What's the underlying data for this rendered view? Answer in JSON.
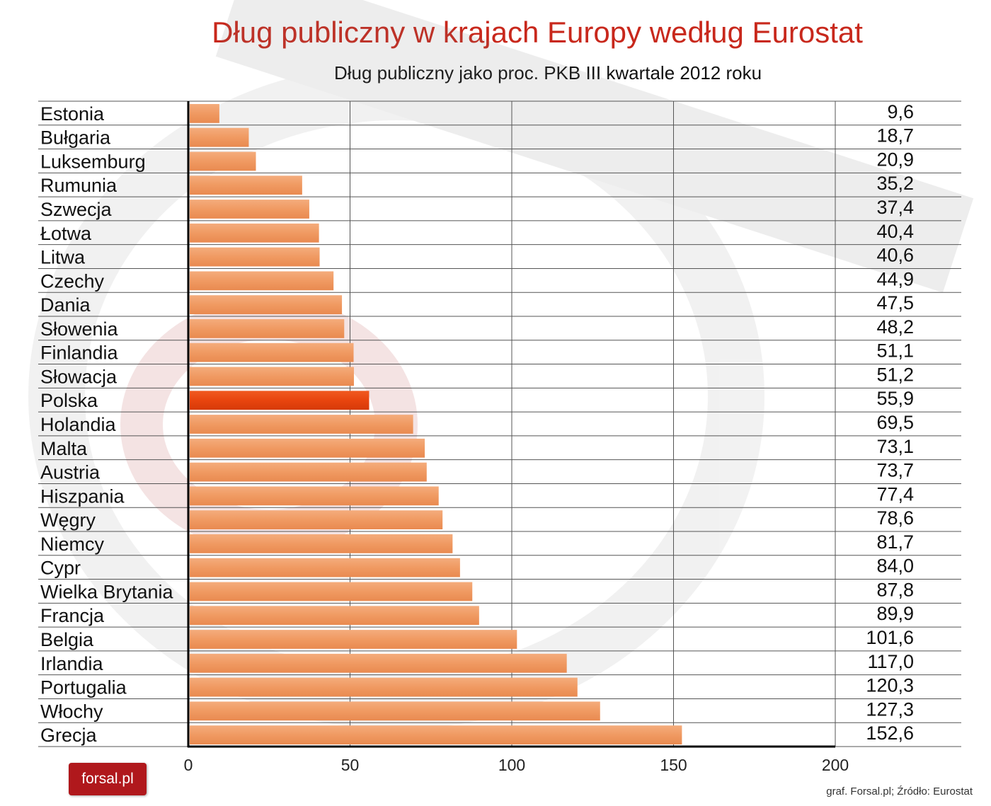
{
  "header": {
    "title": "Dług publiczny w krajach Europy według Eurostat",
    "subtitle": "Dług publiczny jako proc. PKB III kwartale 2012 roku"
  },
  "footer": {
    "logo": "forsal.pl",
    "source": "graf. Forsal.pl; Źródło: Eurostat"
  },
  "colors": {
    "bar": "#f2a06c",
    "bar_highlight": "#e8450f",
    "title": "#c8281c",
    "logo_bg": "#b0181c"
  },
  "chart_data": {
    "type": "bar",
    "orientation": "horizontal",
    "title": "Dług publiczny w krajach Europy według Eurostat",
    "subtitle": "Dług publiczny jako proc. PKB III kwartale 2012 roku",
    "categories": [
      "Estonia",
      "Bułgaria",
      "Luksemburg",
      "Rumunia",
      "Szwecja",
      "Łotwa",
      "Litwa",
      "Czechy",
      "Dania",
      "Słowenia",
      "Finlandia",
      "Słowacja",
      "Polska",
      "Holandia",
      "Malta",
      "Austria",
      "Hiszpania",
      "Węgry",
      "Niemcy",
      "Cypr",
      "Wielka Brytania",
      "Francja",
      "Belgia",
      "Irlandia",
      "Portugalia",
      "Włochy",
      "Grecja"
    ],
    "values": [
      9.6,
      18.7,
      20.9,
      35.2,
      37.4,
      40.4,
      40.6,
      44.9,
      47.5,
      48.2,
      51.1,
      51.2,
      55.9,
      69.5,
      73.1,
      73.7,
      77.4,
      78.6,
      81.7,
      84.0,
      87.8,
      89.9,
      101.6,
      117.0,
      120.3,
      127.3,
      152.6
    ],
    "value_labels": [
      "9,6",
      "18,7",
      "20,9",
      "35,2",
      "37,4",
      "40,4",
      "40,6",
      "44,9",
      "47,5",
      "48,2",
      "51,1",
      "51,2",
      "55,9",
      "69,5",
      "73,1",
      "73,7",
      "77,4",
      "78,6",
      "81,7",
      "84,0",
      "87,8",
      "89,9",
      "101,6",
      "117,0",
      "120,3",
      "127,3",
      "152,6"
    ],
    "highlight": "Polska",
    "xlim": [
      0,
      200
    ],
    "xticks": [
      "0",
      "50",
      "100",
      "150",
      "200"
    ],
    "grid": true,
    "legend": "none"
  }
}
